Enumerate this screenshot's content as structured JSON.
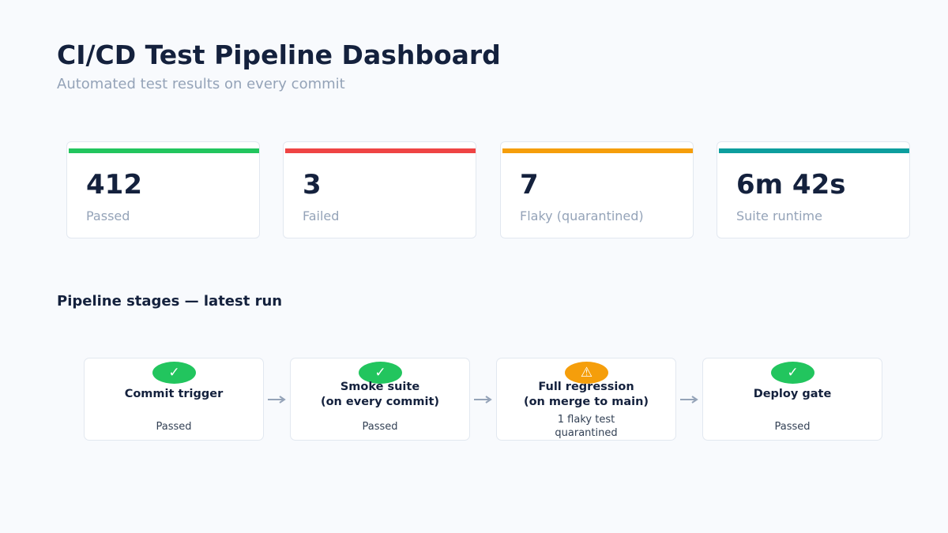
{
  "header": {
    "title": "CI/CD Test Pipeline Dashboard",
    "subtitle": "Automated test results on every commit"
  },
  "kpis": [
    {
      "value": "412",
      "label": "Passed",
      "color": "#22c55e"
    },
    {
      "value": "3",
      "label": "Failed",
      "color": "#ef4444"
    },
    {
      "value": "7",
      "label": "Flaky (quarantined)",
      "color": "#f59e0b"
    },
    {
      "value": "6m 42s",
      "label": "Suite runtime",
      "color": "#0d9e9e"
    }
  ],
  "stages_section": {
    "title": "Pipeline stages — latest run"
  },
  "stages": [
    {
      "name": "Commit trigger",
      "status": "Passed",
      "icon": "check-icon",
      "glyph": "✓",
      "color": "#22c55e"
    },
    {
      "name": "Smoke suite\n(on every commit)",
      "status": "Passed",
      "icon": "check-icon",
      "glyph": "✓",
      "color": "#22c55e"
    },
    {
      "name": "Full regression\n(on merge to main)",
      "status": "1 flaky test\nquarantined",
      "icon": "warning-icon",
      "glyph": "⚠",
      "color": "#f59e0b"
    },
    {
      "name": "Deploy gate",
      "status": "Passed",
      "icon": "check-icon",
      "glyph": "✓",
      "color": "#22c55e"
    }
  ],
  "colors": {
    "arrow": "#94a3b8",
    "text_primary": "#14213d",
    "text_muted": "#94a3b8"
  }
}
